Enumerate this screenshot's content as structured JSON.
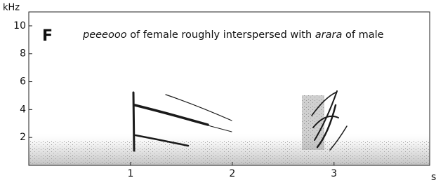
{
  "chart_data": {
    "type": "spectrogram",
    "panel_label": "F",
    "annotation": [
      {
        "text": "peeeooo",
        "italic": true
      },
      {
        "text": " of female roughly interspersed with ",
        "italic": false
      },
      {
        "text": "arara",
        "italic": true
      },
      {
        "text": " of male",
        "italic": false
      }
    ],
    "y_label": "kHz",
    "x_label": "s",
    "xlim": [
      0,
      3.94
    ],
    "xticks": [
      1,
      2,
      3
    ],
    "ylim": [
      0,
      11
    ],
    "yticks": [
      2,
      4,
      6,
      8,
      10
    ]
  }
}
